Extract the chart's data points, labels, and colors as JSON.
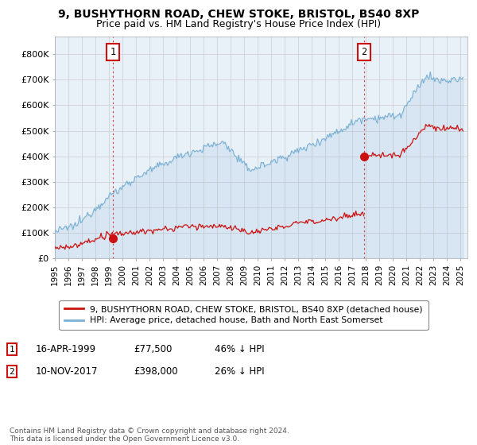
{
  "title": "9, BUSHYTHORN ROAD, CHEW STOKE, BRISTOL, BS40 8XP",
  "subtitle": "Price paid vs. HM Land Registry's House Price Index (HPI)",
  "ylabel_ticks": [
    "£0",
    "£100K",
    "£200K",
    "£300K",
    "£400K",
    "£500K",
    "£600K",
    "£700K",
    "£800K"
  ],
  "ytick_values": [
    0,
    100000,
    200000,
    300000,
    400000,
    500000,
    600000,
    700000,
    800000
  ],
  "ylim": [
    0,
    870000
  ],
  "xlim_start": 1995.0,
  "xlim_end": 2025.5,
  "hpi_color": "#7ab0d4",
  "hpi_fill_color": "#ddeeff",
  "price_color": "#cc1111",
  "marker1_date": 1999.29,
  "marker1_price": 77500,
  "marker1_label": "16-APR-1999",
  "marker1_pct": "46% ↓ HPI",
  "marker2_date": 2017.86,
  "marker2_price": 398000,
  "marker2_label": "10-NOV-2017",
  "marker2_pct": "26% ↓ HPI",
  "legend_line1": "9, BUSHYTHORN ROAD, CHEW STOKE, BRISTOL, BS40 8XP (detached house)",
  "legend_line2": "HPI: Average price, detached house, Bath and North East Somerset",
  "footnote": "Contains HM Land Registry data © Crown copyright and database right 2024.\nThis data is licensed under the Open Government Licence v3.0.",
  "annotation1_text": "1",
  "annotation2_text": "2",
  "bg_color": "#ffffff",
  "grid_color": "#cccccc",
  "title_fontsize": 10,
  "subtitle_fontsize": 9
}
